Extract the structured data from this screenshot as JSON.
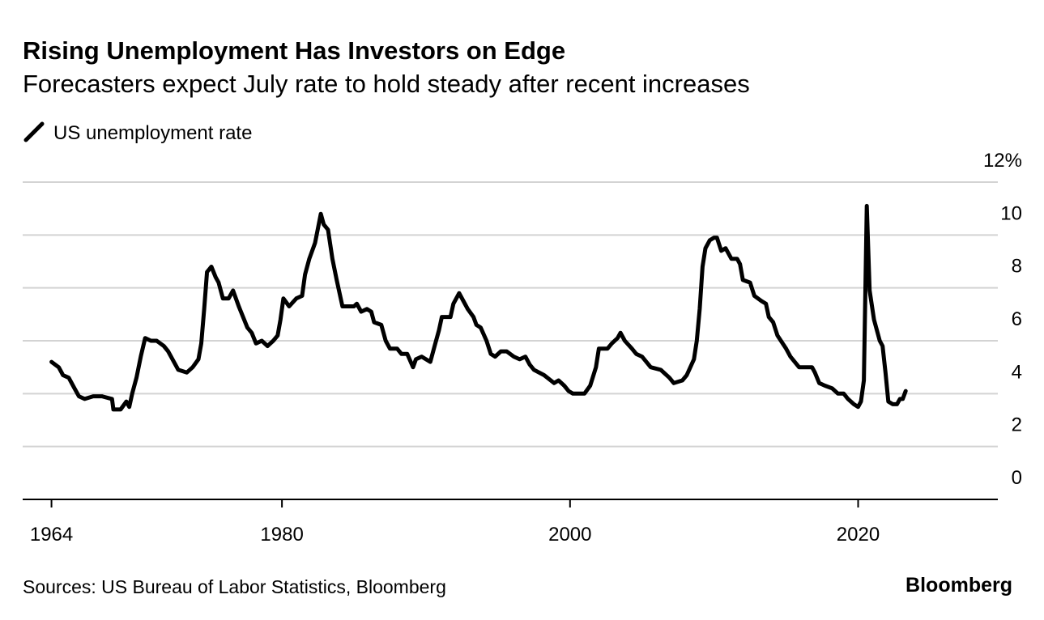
{
  "chart_data": {
    "type": "line",
    "title": "Rising Unemployment Has Investors on Edge",
    "subtitle": "Forecasters expect July rate to hold steady after recent increases",
    "source": "Sources: US Bureau of Labor Statistics, Bloomberg",
    "brand": "Bloomberg",
    "x": [
      1964.0,
      1964.5,
      1964.8,
      1965.2,
      1965.6,
      1965.9,
      1966.3,
      1966.9,
      1967.5,
      1968.2,
      1968.3,
      1968.8,
      1969.2,
      1969.4,
      1969.6,
      1969.9,
      1970.2,
      1970.5,
      1970.9,
      1971.3,
      1971.8,
      1972.1,
      1972.5,
      1972.8,
      1973.4,
      1973.8,
      1974.2,
      1974.4,
      1974.6,
      1974.8,
      1975.1,
      1975.4,
      1975.6,
      1975.9,
      1976.3,
      1976.6,
      1977.0,
      1977.3,
      1977.6,
      1977.9,
      1978.2,
      1978.6,
      1979.0,
      1979.4,
      1979.7,
      1979.9,
      1980.1,
      1980.5,
      1981.0,
      1981.4,
      1981.6,
      1981.9,
      1982.3,
      1982.7,
      1982.9,
      1983.2,
      1983.5,
      1983.8,
      1984.2,
      1985.0,
      1985.2,
      1985.5,
      1985.9,
      1986.2,
      1986.4,
      1986.9,
      1987.2,
      1987.5,
      1988.0,
      1988.3,
      1988.7,
      1989.1,
      1989.3,
      1989.7,
      1990.3,
      1990.6,
      1990.9,
      1991.1,
      1991.7,
      1991.9,
      1992.3,
      1992.6,
      1992.9,
      1993.3,
      1993.5,
      1993.8,
      1994.2,
      1994.5,
      1994.8,
      1995.2,
      1995.6,
      1996.1,
      1996.5,
      1996.9,
      1997.2,
      1997.5,
      1998.2,
      1998.9,
      1999.2,
      1999.6,
      1999.9,
      2000.2,
      2001.0,
      2001.4,
      2001.8,
      2002.0,
      2002.6,
      2002.9,
      2003.3,
      2003.5,
      2003.8,
      2004.3,
      2004.6,
      2005.0,
      2005.6,
      2006.3,
      2006.9,
      2007.2,
      2007.8,
      2008.1,
      2008.6,
      2008.8,
      2009.0,
      2009.2,
      2009.4,
      2009.7,
      2010.0,
      2010.2,
      2010.5,
      2010.8,
      2011.2,
      2011.6,
      2011.8,
      2012.0,
      2012.5,
      2012.8,
      2013.3,
      2013.6,
      2013.8,
      2014.1,
      2014.4,
      2015.0,
      2015.3,
      2015.9,
      2016.5,
      2016.8,
      2017.0,
      2017.3,
      2017.7,
      2018.2,
      2018.6,
      2019.0,
      2019.3,
      2019.7,
      2020.0,
      2020.2,
      2020.4,
      2020.6,
      2020.8,
      2021.1,
      2021.5,
      2021.7,
      2021.9,
      2022.1,
      2022.4,
      2022.7,
      2022.9,
      2023.1,
      2023.3
    ],
    "series": [
      {
        "name": "US unemployment rate",
        "color": "#000000",
        "values": [
          5.2,
          5.0,
          4.7,
          4.6,
          4.2,
          3.9,
          3.8,
          3.9,
          3.9,
          3.8,
          3.4,
          3.4,
          3.7,
          3.5,
          4.0,
          4.6,
          5.4,
          6.1,
          6.0,
          6.0,
          5.8,
          5.6,
          5.2,
          4.9,
          4.8,
          5.0,
          5.3,
          5.9,
          7.2,
          8.6,
          8.8,
          8.4,
          8.2,
          7.6,
          7.6,
          7.9,
          7.3,
          6.9,
          6.5,
          6.3,
          5.9,
          6.0,
          5.8,
          6.0,
          6.2,
          6.8,
          7.6,
          7.3,
          7.6,
          7.7,
          8.5,
          9.1,
          9.7,
          10.8,
          10.4,
          10.2,
          9.1,
          8.3,
          7.3,
          7.3,
          7.4,
          7.1,
          7.2,
          7.1,
          6.7,
          6.6,
          6.0,
          5.7,
          5.7,
          5.5,
          5.5,
          5.0,
          5.3,
          5.4,
          5.2,
          5.8,
          6.4,
          6.9,
          6.9,
          7.4,
          7.8,
          7.5,
          7.2,
          6.9,
          6.6,
          6.5,
          6.0,
          5.5,
          5.4,
          5.6,
          5.6,
          5.4,
          5.3,
          5.4,
          5.1,
          4.9,
          4.7,
          4.4,
          4.5,
          4.3,
          4.1,
          4.0,
          4.0,
          4.3,
          5.0,
          5.7,
          5.7,
          5.9,
          6.1,
          6.3,
          6.0,
          5.7,
          5.5,
          5.4,
          5.0,
          4.9,
          4.6,
          4.4,
          4.5,
          4.7,
          5.3,
          6.0,
          7.2,
          8.8,
          9.5,
          9.8,
          9.9,
          9.9,
          9.4,
          9.5,
          9.1,
          9.1,
          8.9,
          8.3,
          8.2,
          7.7,
          7.5,
          7.4,
          6.9,
          6.7,
          6.2,
          5.7,
          5.4,
          5.0,
          5.0,
          5.0,
          4.8,
          4.4,
          4.3,
          4.2,
          4.0,
          4.0,
          3.8,
          3.6,
          3.5,
          3.7,
          4.5,
          11.1,
          7.9,
          6.8,
          6.0,
          5.8,
          4.8,
          3.7,
          3.6,
          3.6,
          3.8,
          3.8,
          4.1
        ]
      }
    ],
    "xlim": [
      1962,
      2029.7
    ],
    "xticks": [
      1964,
      1980,
      2000,
      2020
    ],
    "ylim": [
      0,
      12
    ],
    "yticks": [
      0,
      2,
      4,
      6,
      8,
      10,
      {
        "value": 12,
        "label": "12%"
      }
    ],
    "grid": true
  }
}
